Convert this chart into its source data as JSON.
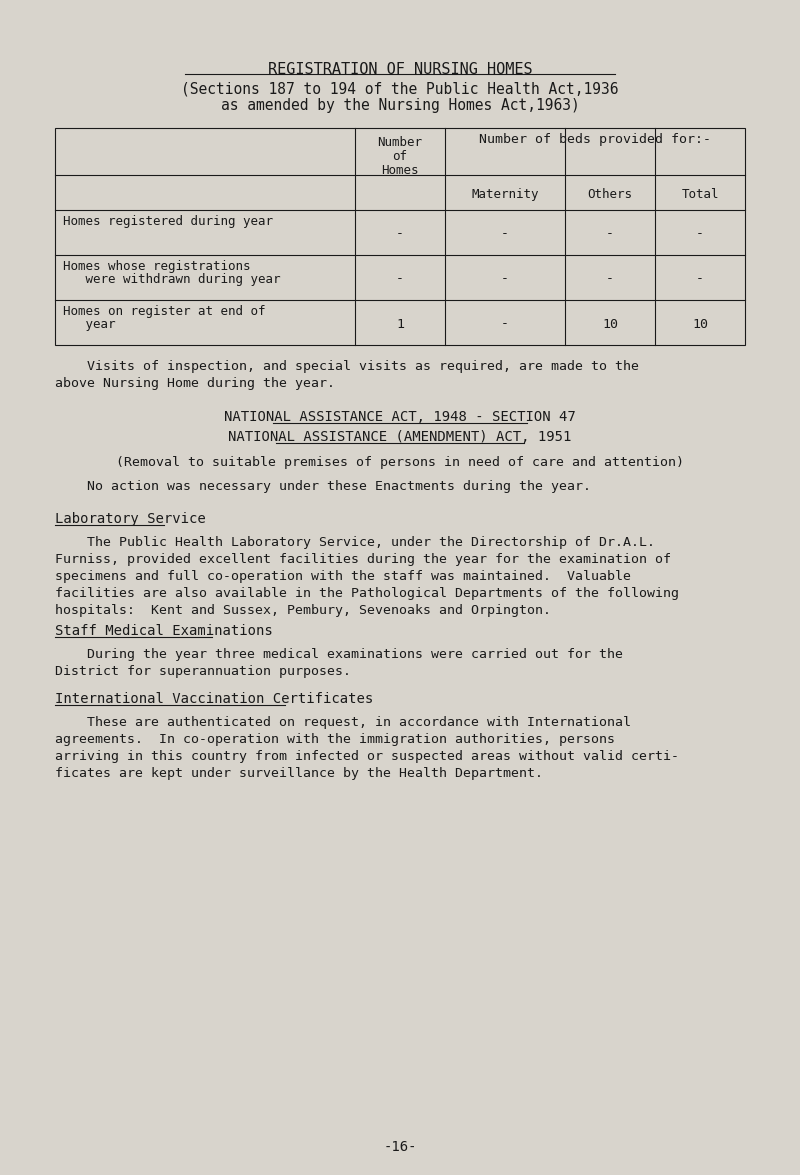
{
  "bg_color": "#d8d4cc",
  "text_color": "#1a1a1a",
  "font_family": "monospace",
  "title": "REGISTRATION OF NURSING HOMES",
  "subtitle1": "(Sections 187 to 194 of the Public Health Act,1936",
  "subtitle2": "as amended by the Nursing Homes Act,1963)",
  "table": {
    "header_span": "Number of beds provided for:-",
    "col1_header": [
      "Number",
      "of",
      "Homes"
    ],
    "sub_headers": [
      "Maternity",
      "Others",
      "Total"
    ],
    "row_labels": [
      [
        "Homes registered during year"
      ],
      [
        "Homes whose registrations",
        "   were withdrawn during year"
      ],
      [
        "Homes on register at end of",
        "   year"
      ]
    ],
    "data": [
      [
        "-",
        "-",
        "-",
        "-"
      ],
      [
        "-",
        "-",
        "-",
        "-"
      ],
      [
        "1",
        "-",
        "10",
        "10"
      ]
    ]
  },
  "para1": "    Visits of inspection, and special visits as required, are made to the\nabove Nursing Home during the year.",
  "section_title1a": "NATIONAL ASSISTANCE ACT, 1948 - SECTION 47",
  "section_title1b": "NATIONAL ASSISTANCE (AMENDMENT) ACT, 1951",
  "section_sub1": "(Removal to suitable premises of persons in need of care and attention)",
  "section_body1": "    No action was necessary under these Enactments during the year.",
  "section_title2": "Laboratory Service",
  "section_body2": "    The Public Health Laboratory Service, under the Directorship of Dr.A.L.\nFurniss, provided excellent facilities during the year for the examination of\nspecimens and full co-operation with the staff was maintained.  Valuable\nfacilities are also available in the Pathological Departments of the following\nhospitals:  Kent and Sussex, Pembury, Sevenoaks and Orpington.",
  "section_title3": "Staff Medical Examinations",
  "section_body3": "    During the year three medical examinations were carried out for the\nDistrict for superannuation purposes.",
  "section_title4": "International Vaccination Certificates",
  "section_body4": "    These are authenticated on request, in accordance with International\nagreements.  In co-operation with the immigration authorities, persons\narriving in this country from infected or suspected areas without valid certi-\nficates are kept under surveillance by the Health Department.",
  "page_number": "-16-"
}
